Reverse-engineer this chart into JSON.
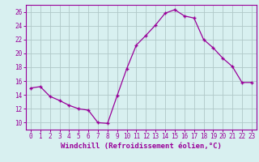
{
  "x": [
    0,
    1,
    2,
    3,
    4,
    5,
    6,
    7,
    8,
    9,
    10,
    11,
    12,
    13,
    14,
    15,
    16,
    17,
    18,
    19,
    20,
    21,
    22,
    23
  ],
  "y": [
    15.0,
    15.2,
    13.8,
    13.2,
    12.5,
    12.0,
    11.8,
    10.0,
    9.9,
    13.9,
    17.8,
    21.2,
    22.6,
    24.1,
    25.8,
    26.3,
    25.4,
    25.1,
    22.0,
    20.8,
    19.3,
    18.1,
    15.8,
    15.8
  ],
  "line_color": "#990099",
  "marker": "+",
  "marker_size": 3.5,
  "marker_lw": 1.0,
  "bg_color": "#d8f0f0",
  "grid_color": "#b0c8c8",
  "xlabel": "Windchill (Refroidissement éolien,°C)",
  "ylim": [
    9,
    27
  ],
  "yticks": [
    10,
    12,
    14,
    16,
    18,
    20,
    22,
    24,
    26
  ],
  "xticks": [
    0,
    1,
    2,
    3,
    4,
    5,
    6,
    7,
    8,
    9,
    10,
    11,
    12,
    13,
    14,
    15,
    16,
    17,
    18,
    19,
    20,
    21,
    22,
    23
  ],
  "tick_color": "#990099",
  "tick_fontsize": 5.5,
  "xlabel_fontsize": 6.5,
  "xlabel_color": "#990099",
  "spine_color": "#990099",
  "line_width": 0.9
}
